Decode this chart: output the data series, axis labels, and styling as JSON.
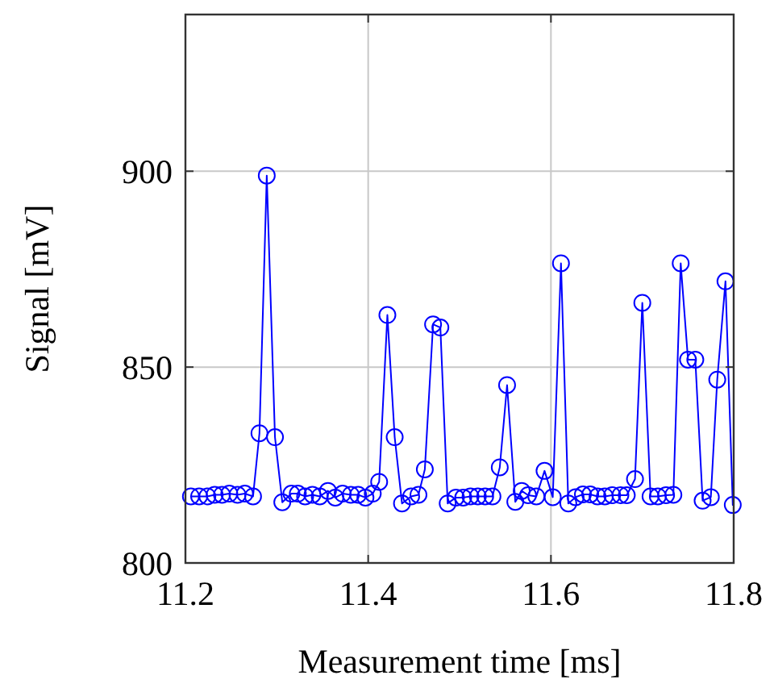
{
  "chart_data": {
    "type": "line",
    "xlabel": "Measurement time [ms]",
    "ylabel": "Signal [mV]",
    "xlim": [
      11.2,
      11.8
    ],
    "ylim": [
      800,
      940
    ],
    "xticks": [
      11.2,
      11.4,
      11.6,
      11.8
    ],
    "yticks": [
      800,
      850,
      900
    ],
    "grid": true,
    "marker": "circle",
    "line_style": "solid",
    "series": [
      {
        "color": "#0000ff",
        "x": [
          11.206,
          11.215,
          11.224,
          11.232,
          11.24,
          11.248,
          11.257,
          11.265,
          11.274,
          11.281,
          11.289,
          11.298,
          11.306,
          11.316,
          11.323,
          11.331,
          11.339,
          11.347,
          11.356,
          11.364,
          11.372,
          11.381,
          11.389,
          11.397,
          11.405,
          11.412,
          11.421,
          11.429,
          11.437,
          11.447,
          11.455,
          11.462,
          11.471,
          11.479,
          11.487,
          11.496,
          11.504,
          11.512,
          11.52,
          11.528,
          11.536,
          11.544,
          11.552,
          11.561,
          11.568,
          11.575,
          11.584,
          11.593,
          11.602,
          11.611,
          11.619,
          11.627,
          11.635,
          11.643,
          11.651,
          11.659,
          11.667,
          11.676,
          11.683,
          11.692,
          11.7,
          11.709,
          11.717,
          11.726,
          11.734,
          11.742,
          11.75,
          11.758,
          11.766,
          11.775,
          11.782,
          11.791,
          11.799
        ],
        "values": [
          817,
          817,
          817,
          817.4,
          817.4,
          817.7,
          817.4,
          817.7,
          817,
          833.1,
          898.9,
          832.1,
          815.5,
          817.7,
          817.7,
          817,
          817.4,
          817,
          818.4,
          816.7,
          817.7,
          817.4,
          817.4,
          816.7,
          817.7,
          820.7,
          863.3,
          832.1,
          815.2,
          817,
          817.4,
          823.9,
          860.9,
          860.1,
          815.2,
          816.7,
          816.7,
          817,
          817,
          817,
          817,
          824.4,
          845.4,
          815.6,
          818.4,
          817.3,
          817,
          823.5,
          816.8,
          876.5,
          815.2,
          816.8,
          817.5,
          817.5,
          817,
          817,
          817.3,
          817.3,
          817.3,
          821.4,
          866.4,
          817,
          817,
          817.3,
          817.4,
          876.5,
          851.9,
          851.9,
          815.9,
          816.8,
          846.8,
          871.9,
          814.8
        ]
      }
    ]
  }
}
